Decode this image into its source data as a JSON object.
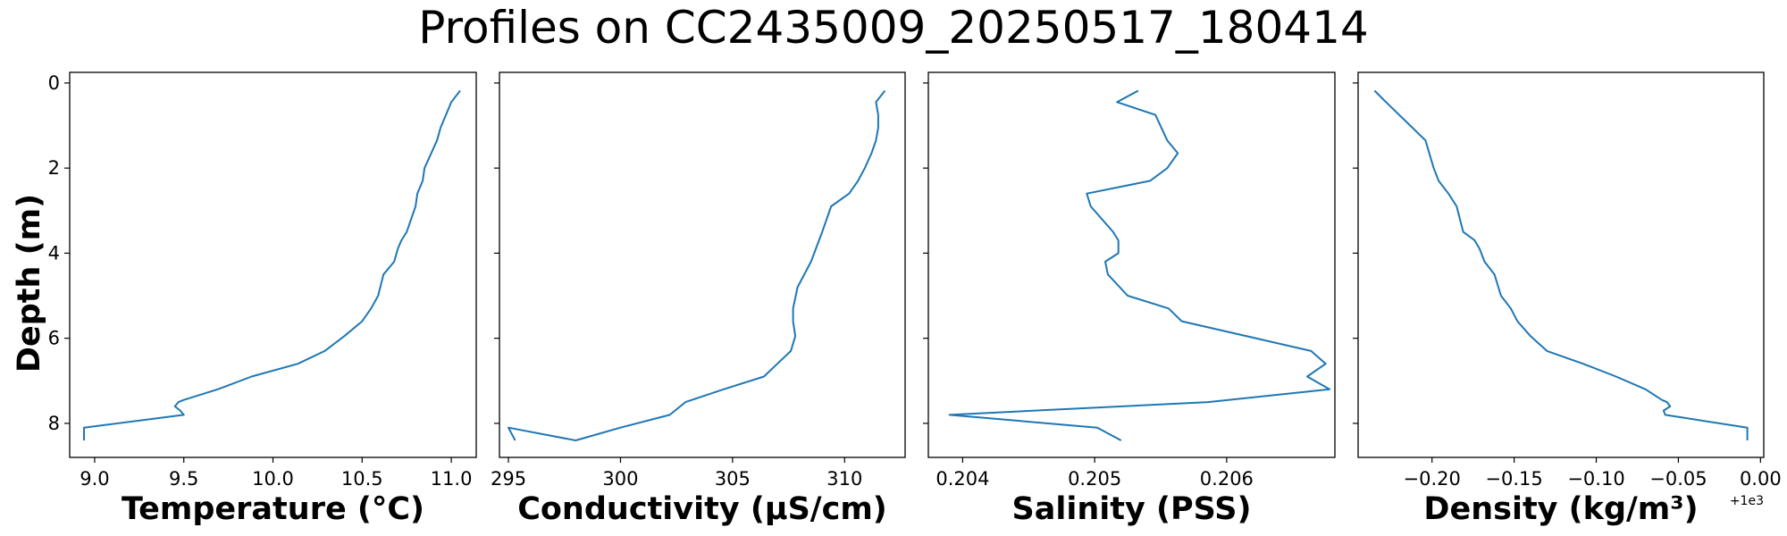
{
  "title": "Profiles on CC2435009_20250517_180414",
  "colors": {
    "line": "#1f77b4",
    "frame": "#000000"
  },
  "shared_y": {
    "label": "Depth (m)",
    "ticks": [
      0,
      2,
      4,
      6,
      8
    ],
    "tick_labels": [
      "0",
      "2",
      "4",
      "6",
      "8"
    ],
    "ylim": [
      8.8,
      -0.25
    ],
    "inverted": true
  },
  "chart_data": [
    {
      "type": "line",
      "xlabel": "Temperature (°C)",
      "ylabel": "Depth (m)",
      "xlim": [
        8.86,
        11.14
      ],
      "ylim": [
        8.8,
        -0.25
      ],
      "xticks": [
        9.0,
        9.5,
        10.0,
        10.5,
        11.0
      ],
      "xtick_labels": [
        "9.0",
        "9.5",
        "10.0",
        "10.5",
        "11.0"
      ],
      "grid": false,
      "series": [
        {
          "x": [
            11.05,
            11.0,
            10.97,
            10.94,
            10.92,
            10.85,
            10.84,
            10.81,
            10.8,
            10.75,
            10.72,
            10.7,
            10.68,
            10.62,
            10.59,
            10.55,
            10.5,
            10.4,
            10.29,
            10.14,
            9.88,
            9.69,
            9.5,
            9.47,
            9.45,
            9.48,
            9.5,
            8.94,
            8.94
          ],
          "y": [
            0.18,
            0.45,
            0.75,
            1.05,
            1.35,
            2.0,
            2.3,
            2.6,
            2.9,
            3.5,
            3.7,
            3.9,
            4.2,
            4.5,
            5.0,
            5.3,
            5.6,
            5.95,
            6.3,
            6.6,
            6.9,
            7.2,
            7.45,
            7.5,
            7.6,
            7.7,
            7.8,
            8.1,
            8.4
          ]
        }
      ]
    },
    {
      "type": "line",
      "xlabel": "Conductivity (μS/cm)",
      "ylabel": "",
      "xlim": [
        294.6,
        312.7
      ],
      "ylim": [
        8.8,
        -0.25
      ],
      "xticks": [
        295,
        300,
        305,
        310
      ],
      "xtick_labels": [
        "295",
        "300",
        "305",
        "310"
      ],
      "grid": false,
      "series": [
        {
          "x": [
            311.8,
            311.4,
            311.5,
            311.5,
            311.4,
            311.2,
            310.9,
            310.6,
            310.2,
            309.4,
            309.0,
            308.5,
            307.9,
            307.7,
            307.7,
            307.8,
            307.6,
            307.0,
            306.4,
            304.6,
            302.9,
            302.2,
            300.0,
            298.0,
            295.0,
            295.3
          ],
          "y": [
            0.18,
            0.45,
            0.75,
            1.05,
            1.35,
            1.65,
            2.0,
            2.3,
            2.6,
            2.9,
            3.5,
            4.2,
            4.8,
            5.3,
            5.6,
            5.95,
            6.3,
            6.6,
            6.9,
            7.2,
            7.5,
            7.8,
            8.1,
            8.4,
            8.1,
            8.4
          ]
        }
      ]
    },
    {
      "type": "line",
      "xlabel": "Salinity (PSS)",
      "ylabel": "",
      "xlim": [
        0.20374,
        0.20682
      ],
      "ylim": [
        8.8,
        -0.25
      ],
      "xticks": [
        0.204,
        0.205,
        0.206
      ],
      "xtick_labels": [
        "0.204",
        "0.205",
        "0.206"
      ],
      "grid": false,
      "series": [
        {
          "x": [
            0.20533,
            0.20517,
            0.20546,
            0.20555,
            0.20563,
            0.20555,
            0.20542,
            0.20494,
            0.20497,
            0.20514,
            0.20518,
            0.20518,
            0.20508,
            0.2051,
            0.20525,
            0.20556,
            0.20566,
            0.20664,
            0.20675,
            0.20661,
            0.20678,
            0.20586,
            0.2039,
            0.20502,
            0.2052
          ],
          "y": [
            0.18,
            0.45,
            0.75,
            1.35,
            1.65,
            2.0,
            2.3,
            2.6,
            2.9,
            3.5,
            3.7,
            4.0,
            4.2,
            4.5,
            5.0,
            5.3,
            5.6,
            6.3,
            6.6,
            6.9,
            7.2,
            7.5,
            7.8,
            8.1,
            8.4
          ]
        }
      ]
    },
    {
      "type": "line",
      "xlabel": "Density (kg/m³)",
      "ylabel": "",
      "xlim": [
        -0.245,
        0.002
      ],
      "ylim": [
        8.8,
        -0.25
      ],
      "xticks": [
        -0.2,
        -0.15,
        -0.1,
        -0.05,
        0.0
      ],
      "xtick_labels": [
        "−0.20",
        "−0.15",
        "−0.10",
        "−0.05",
        "0.00"
      ],
      "x_offset_text": "+1e3",
      "grid": false,
      "series": [
        {
          "x": [
            -0.235,
            -0.228,
            -0.22,
            -0.212,
            -0.204,
            -0.199,
            -0.196,
            -0.19,
            -0.185,
            -0.181,
            -0.174,
            -0.171,
            -0.168,
            -0.162,
            -0.158,
            -0.152,
            -0.148,
            -0.14,
            -0.13,
            -0.108,
            -0.088,
            -0.07,
            -0.06,
            -0.057,
            -0.055,
            -0.059,
            -0.058,
            -0.008,
            -0.008
          ],
          "y": [
            0.18,
            0.45,
            0.75,
            1.05,
            1.35,
            2.0,
            2.3,
            2.6,
            2.9,
            3.5,
            3.7,
            3.9,
            4.2,
            4.5,
            5.0,
            5.3,
            5.6,
            5.95,
            6.3,
            6.6,
            6.9,
            7.2,
            7.45,
            7.5,
            7.6,
            7.7,
            7.8,
            8.1,
            8.4
          ]
        }
      ]
    }
  ]
}
